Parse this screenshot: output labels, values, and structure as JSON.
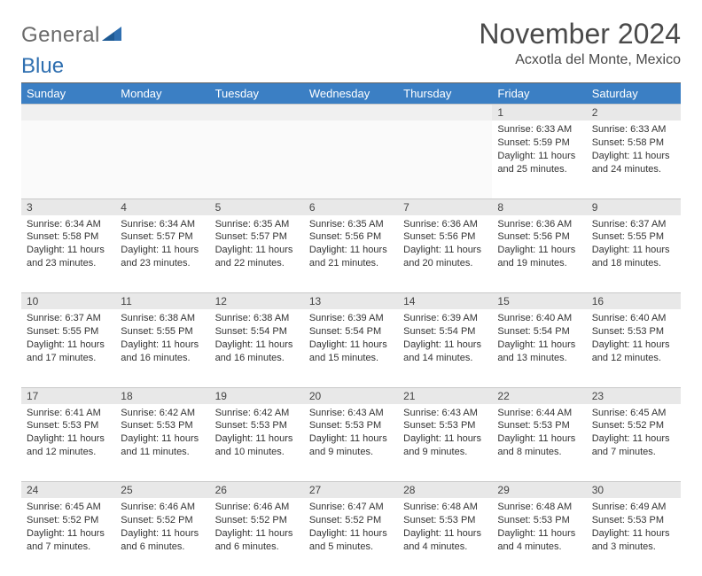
{
  "logo": {
    "word1": "General",
    "word2": "Blue",
    "word1_color": "#6a6a6a",
    "word2_color": "#2f6fb0",
    "icon_color": "#2f6fb0"
  },
  "title": "November 2024",
  "location": "Acxotla del Monte, Mexico",
  "accent_color": "#3b7fc4",
  "header_text_color": "#ffffff",
  "daynum_bg": "#e8e8e8",
  "page_bg": "#ffffff",
  "weekdays": [
    "Sunday",
    "Monday",
    "Tuesday",
    "Wednesday",
    "Thursday",
    "Friday",
    "Saturday"
  ],
  "cell_font_size": 11,
  "header_font_size": 13,
  "title_font_size": 32,
  "weeks": [
    [
      null,
      null,
      null,
      null,
      null,
      {
        "n": "1",
        "sr": "6:33 AM",
        "ss": "5:59 PM",
        "dl": "11 hours and 25 minutes."
      },
      {
        "n": "2",
        "sr": "6:33 AM",
        "ss": "5:58 PM",
        "dl": "11 hours and 24 minutes."
      }
    ],
    [
      {
        "n": "3",
        "sr": "6:34 AM",
        "ss": "5:58 PM",
        "dl": "11 hours and 23 minutes."
      },
      {
        "n": "4",
        "sr": "6:34 AM",
        "ss": "5:57 PM",
        "dl": "11 hours and 23 minutes."
      },
      {
        "n": "5",
        "sr": "6:35 AM",
        "ss": "5:57 PM",
        "dl": "11 hours and 22 minutes."
      },
      {
        "n": "6",
        "sr": "6:35 AM",
        "ss": "5:56 PM",
        "dl": "11 hours and 21 minutes."
      },
      {
        "n": "7",
        "sr": "6:36 AM",
        "ss": "5:56 PM",
        "dl": "11 hours and 20 minutes."
      },
      {
        "n": "8",
        "sr": "6:36 AM",
        "ss": "5:56 PM",
        "dl": "11 hours and 19 minutes."
      },
      {
        "n": "9",
        "sr": "6:37 AM",
        "ss": "5:55 PM",
        "dl": "11 hours and 18 minutes."
      }
    ],
    [
      {
        "n": "10",
        "sr": "6:37 AM",
        "ss": "5:55 PM",
        "dl": "11 hours and 17 minutes."
      },
      {
        "n": "11",
        "sr": "6:38 AM",
        "ss": "5:55 PM",
        "dl": "11 hours and 16 minutes."
      },
      {
        "n": "12",
        "sr": "6:38 AM",
        "ss": "5:54 PM",
        "dl": "11 hours and 16 minutes."
      },
      {
        "n": "13",
        "sr": "6:39 AM",
        "ss": "5:54 PM",
        "dl": "11 hours and 15 minutes."
      },
      {
        "n": "14",
        "sr": "6:39 AM",
        "ss": "5:54 PM",
        "dl": "11 hours and 14 minutes."
      },
      {
        "n": "15",
        "sr": "6:40 AM",
        "ss": "5:54 PM",
        "dl": "11 hours and 13 minutes."
      },
      {
        "n": "16",
        "sr": "6:40 AM",
        "ss": "5:53 PM",
        "dl": "11 hours and 12 minutes."
      }
    ],
    [
      {
        "n": "17",
        "sr": "6:41 AM",
        "ss": "5:53 PM",
        "dl": "11 hours and 12 minutes."
      },
      {
        "n": "18",
        "sr": "6:42 AM",
        "ss": "5:53 PM",
        "dl": "11 hours and 11 minutes."
      },
      {
        "n": "19",
        "sr": "6:42 AM",
        "ss": "5:53 PM",
        "dl": "11 hours and 10 minutes."
      },
      {
        "n": "20",
        "sr": "6:43 AM",
        "ss": "5:53 PM",
        "dl": "11 hours and 9 minutes."
      },
      {
        "n": "21",
        "sr": "6:43 AM",
        "ss": "5:53 PM",
        "dl": "11 hours and 9 minutes."
      },
      {
        "n": "22",
        "sr": "6:44 AM",
        "ss": "5:53 PM",
        "dl": "11 hours and 8 minutes."
      },
      {
        "n": "23",
        "sr": "6:45 AM",
        "ss": "5:52 PM",
        "dl": "11 hours and 7 minutes."
      }
    ],
    [
      {
        "n": "24",
        "sr": "6:45 AM",
        "ss": "5:52 PM",
        "dl": "11 hours and 7 minutes."
      },
      {
        "n": "25",
        "sr": "6:46 AM",
        "ss": "5:52 PM",
        "dl": "11 hours and 6 minutes."
      },
      {
        "n": "26",
        "sr": "6:46 AM",
        "ss": "5:52 PM",
        "dl": "11 hours and 6 minutes."
      },
      {
        "n": "27",
        "sr": "6:47 AM",
        "ss": "5:52 PM",
        "dl": "11 hours and 5 minutes."
      },
      {
        "n": "28",
        "sr": "6:48 AM",
        "ss": "5:53 PM",
        "dl": "11 hours and 4 minutes."
      },
      {
        "n": "29",
        "sr": "6:48 AM",
        "ss": "5:53 PM",
        "dl": "11 hours and 4 minutes."
      },
      {
        "n": "30",
        "sr": "6:49 AM",
        "ss": "5:53 PM",
        "dl": "11 hours and 3 minutes."
      }
    ]
  ],
  "labels": {
    "sunrise": "Sunrise:",
    "sunset": "Sunset:",
    "daylight": "Daylight:"
  }
}
